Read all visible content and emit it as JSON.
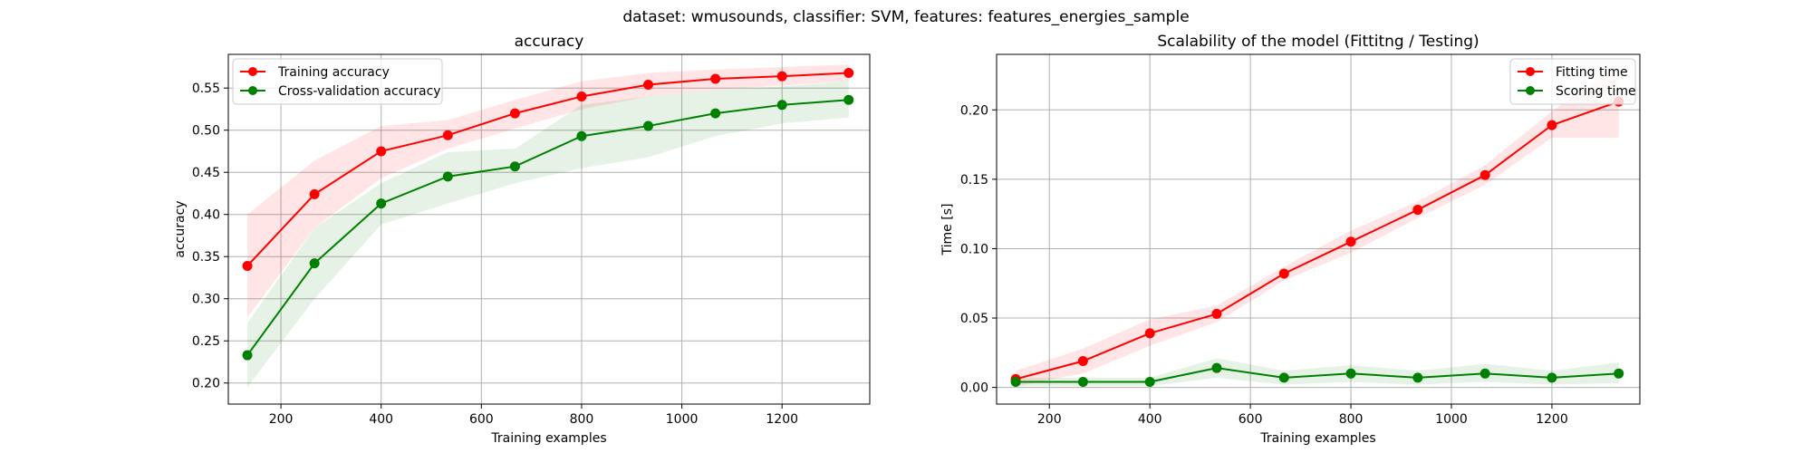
{
  "figure": {
    "suptitle": "dataset: wmusounds, classifier: SVM, features: features_energies_sample"
  },
  "chart_data": [
    {
      "type": "line",
      "title": "accuracy",
      "xlabel": "Training examples",
      "ylabel": "accuracy",
      "xlim": [
        95,
        1375
      ],
      "ylim": [
        0.175,
        0.59
      ],
      "xticks": [
        200,
        400,
        600,
        800,
        1000,
        1200
      ],
      "yticks": [
        0.2,
        0.25,
        0.3,
        0.35,
        0.4,
        0.45,
        0.5,
        0.55
      ],
      "grid": true,
      "legend_position": "upper-left",
      "x": [
        133,
        267,
        400,
        533,
        667,
        800,
        933,
        1067,
        1200,
        1333
      ],
      "series": [
        {
          "name": "Training accuracy",
          "color": "#ff0000",
          "band_color": "#ff0000",
          "values": [
            0.339,
            0.424,
            0.475,
            0.494,
            0.52,
            0.54,
            0.554,
            0.561,
            0.564,
            0.568
          ],
          "lower": [
            0.278,
            0.384,
            0.443,
            0.478,
            0.502,
            0.525,
            0.54,
            0.548,
            0.553,
            0.558
          ],
          "upper": [
            0.4,
            0.464,
            0.505,
            0.512,
            0.536,
            0.558,
            0.568,
            0.572,
            0.575,
            0.578
          ]
        },
        {
          "name": "Cross-validation accuracy",
          "color": "#008000",
          "band_color": "#008000",
          "values": [
            0.233,
            0.342,
            0.413,
            0.445,
            0.457,
            0.493,
            0.505,
            0.52,
            0.53,
            0.536
          ],
          "lower": [
            0.195,
            0.3,
            0.388,
            0.413,
            0.437,
            0.455,
            0.468,
            0.493,
            0.508,
            0.515
          ],
          "upper": [
            0.271,
            0.384,
            0.437,
            0.474,
            0.478,
            0.53,
            0.54,
            0.548,
            0.552,
            0.558
          ]
        }
      ]
    },
    {
      "type": "line",
      "title": "Scalability of the model (Fittitng / Testing)",
      "xlabel": "Training examples",
      "ylabel": "Time [s]",
      "xlim": [
        95,
        1375
      ],
      "ylim": [
        -0.012,
        0.24
      ],
      "xticks": [
        200,
        400,
        600,
        800,
        1000,
        1200
      ],
      "yticks": [
        0.0,
        0.05,
        0.1,
        0.15,
        0.2
      ],
      "grid": true,
      "legend_position": "upper-right",
      "x": [
        133,
        267,
        400,
        533,
        667,
        800,
        933,
        1067,
        1200,
        1333
      ],
      "series": [
        {
          "name": "Fitting time",
          "color": "#ff0000",
          "band_color": "#ff0000",
          "values": [
            0.006,
            0.019,
            0.039,
            0.053,
            0.082,
            0.105,
            0.128,
            0.153,
            0.189,
            0.206
          ],
          "lower": [
            0.001,
            0.01,
            0.03,
            0.047,
            0.077,
            0.097,
            0.122,
            0.146,
            0.18,
            0.18
          ],
          "upper": [
            0.012,
            0.028,
            0.049,
            0.059,
            0.087,
            0.113,
            0.134,
            0.16,
            0.199,
            0.232
          ]
        },
        {
          "name": "Scoring time",
          "color": "#008000",
          "band_color": "#008000",
          "values": [
            0.004,
            0.004,
            0.004,
            0.014,
            0.007,
            0.01,
            0.007,
            0.01,
            0.007,
            0.01
          ],
          "lower": [
            0.001,
            0.001,
            0.001,
            0.007,
            0.002,
            0.004,
            0.002,
            0.004,
            0.002,
            0.003
          ],
          "upper": [
            0.007,
            0.007,
            0.007,
            0.021,
            0.012,
            0.016,
            0.012,
            0.017,
            0.012,
            0.018
          ]
        }
      ]
    }
  ]
}
